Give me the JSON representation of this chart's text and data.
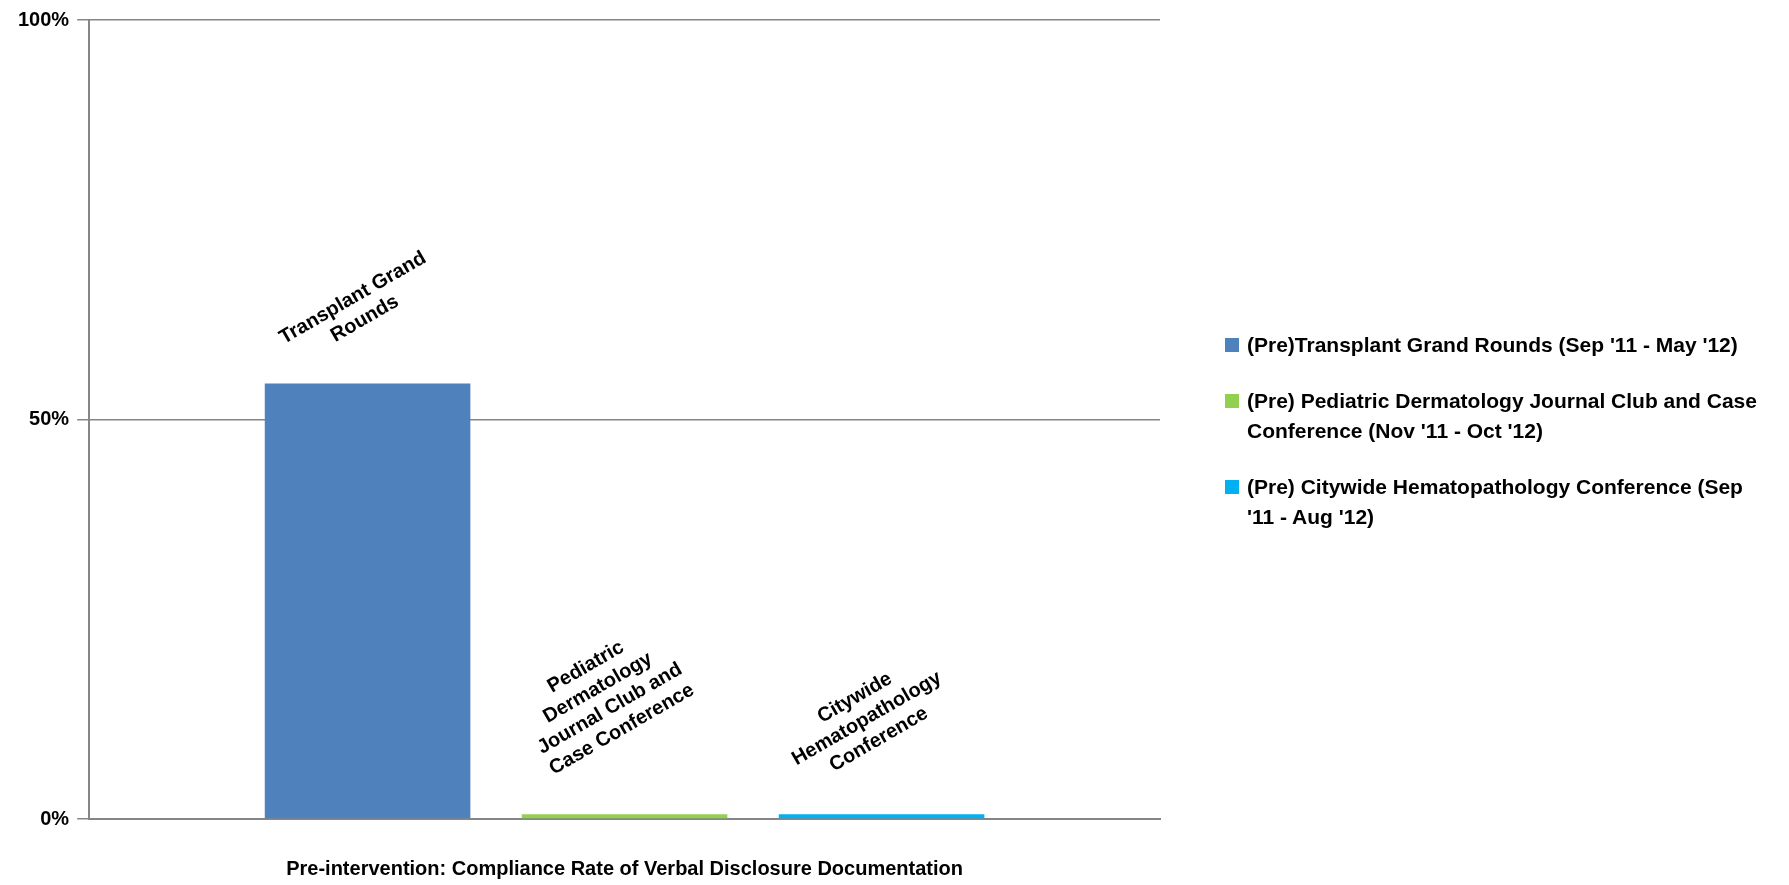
{
  "chart_data": {
    "type": "bar",
    "xlabel": "Pre-intervention: Compliance Rate of Verbal Disclosure Documentation",
    "categories": [
      null
    ],
    "series": [
      {
        "name": "(Pre)Transplant Grand Rounds (Sep '11 - May '12)",
        "color": "#4f81bd",
        "values": [
          54.5
        ]
      },
      {
        "name": "(Pre) Pediatric Dermatology Journal Club and Case Conference (Nov '11 - Oct '12)",
        "color": "#92d050",
        "values": [
          0.6
        ]
      },
      {
        "name": "(Pre) Citywide Hematopathology Conference (Sep '11 - Aug '12)",
        "color": "#00b0f0",
        "values": [
          0.6
        ]
      }
    ],
    "annotations": [
      "Transplant Grand Rounds",
      "Pediatric Dermatology Journal Club and Case Conference",
      "Citywide Hematopathology Conference"
    ],
    "ylim": [
      0,
      100
    ],
    "yticks": [
      {
        "value": 0,
        "label": "0%"
      },
      {
        "value": 50,
        "label": "50%"
      },
      {
        "value": 100,
        "label": "100%"
      }
    ],
    "grid": "y",
    "legend": "right"
  }
}
